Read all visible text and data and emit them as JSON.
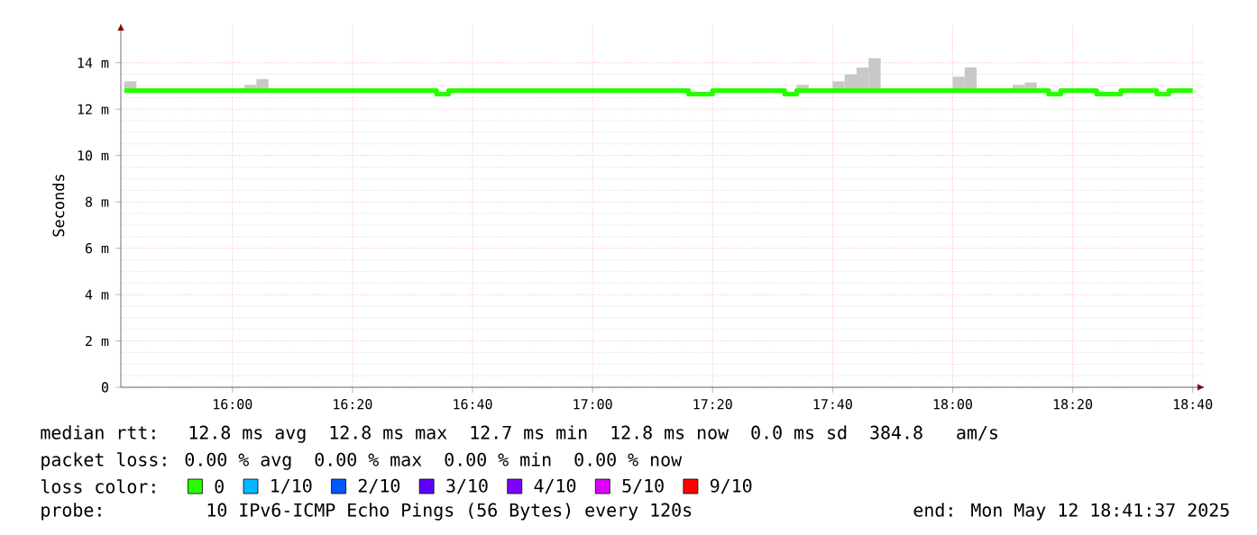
{
  "chart_data": {
    "type": "step",
    "ylabel": "Seconds",
    "xlim": [
      15.69,
      18.7
    ],
    "ylim": [
      0,
      15.7
    ],
    "xticks": [
      {
        "value": 16.0,
        "label": "16:00"
      },
      {
        "value": 16.3333,
        "label": "16:20"
      },
      {
        "value": 16.6667,
        "label": "16:40"
      },
      {
        "value": 17.0,
        "label": "17:00"
      },
      {
        "value": 17.3333,
        "label": "17:20"
      },
      {
        "value": 17.6667,
        "label": "17:40"
      },
      {
        "value": 18.0,
        "label": "18:00"
      },
      {
        "value": 18.3333,
        "label": "18:20"
      },
      {
        "value": 18.6667,
        "label": "18:40"
      }
    ],
    "yticks": [
      0,
      {
        "value": 2,
        "label": "2 m"
      },
      {
        "value": 4,
        "label": "4 m"
      },
      {
        "value": 6,
        "label": "6 m"
      },
      {
        "value": 8,
        "label": "8 m"
      },
      {
        "value": 10,
        "label": "10 m"
      },
      {
        "value": 12,
        "label": "12 m"
      },
      {
        "value": 14,
        "label": "14 m"
      }
    ],
    "grid": true,
    "legend": "bottom",
    "marker": "none",
    "series": [
      {
        "type": "bar",
        "color": "#c8c8c8",
        "x": [
          15.7167,
          16.05,
          16.0833,
          17.5833,
          17.6833,
          17.7167,
          17.75,
          17.7833,
          18.0167,
          18.05,
          18.1833,
          18.2167
        ],
        "base": [
          12.9,
          12.9,
          12.9,
          12.9,
          12.9,
          12.9,
          12.9,
          12.9,
          12.9,
          12.9,
          12.9,
          12.9
        ],
        "values": [
          0.3,
          0.15,
          0.4,
          0.15,
          0.3,
          0.6,
          0.9,
          1.3,
          0.5,
          0.9,
          0.15,
          0.25
        ]
      },
      {
        "name": "0",
        "color": "#26ff00",
        "x": [
          15.7,
          15.7333,
          16.0333,
          16.0667,
          16.1,
          16.5667,
          16.6,
          17.2667,
          17.3333,
          17.5333,
          17.5667,
          17.6,
          17.6667,
          17.7,
          17.7333,
          17.7667,
          17.8,
          18.0,
          18.0333,
          18.0667,
          18.1667,
          18.2,
          18.2333,
          18.2667,
          18.3,
          18.4,
          18.4667,
          18.5667,
          18.6,
          18.6667
        ],
        "values": [
          12.8,
          12.8,
          12.8,
          12.8,
          12.8,
          12.65,
          12.8,
          12.65,
          12.8,
          12.65,
          12.8,
          12.8,
          12.8,
          12.8,
          12.8,
          12.8,
          12.8,
          12.8,
          12.8,
          12.8,
          12.8,
          12.8,
          12.8,
          12.65,
          12.8,
          12.65,
          12.8,
          12.65,
          12.8,
          12.8
        ]
      },
      {
        "name": "1/10",
        "color": "#00b8ff"
      },
      {
        "name": "2/10",
        "color": "#0059ff"
      },
      {
        "name": "3/10",
        "color": "#5e00ff"
      },
      {
        "name": "4/10",
        "color": "#7e00ff"
      },
      {
        "name": "5/10",
        "color": "#dd00ff"
      },
      {
        "name": "9/10",
        "color": "#ff0000"
      }
    ],
    "annotations": [
      "median rtt:  12.8 ms avg  12.8 ms max  12.7 ms min  12.8 ms now  0.0 ms sd  384.8   am/s",
      "packet loss: 0.00 % avg  0.00 % max  0.00 % min  0.00 % now",
      "loss color:",
      "probe:       10 IPv6-ICMP Echo Pings (56 Bytes) every 120s",
      "end: Mon May 12 18:41:37 2025"
    ]
  }
}
